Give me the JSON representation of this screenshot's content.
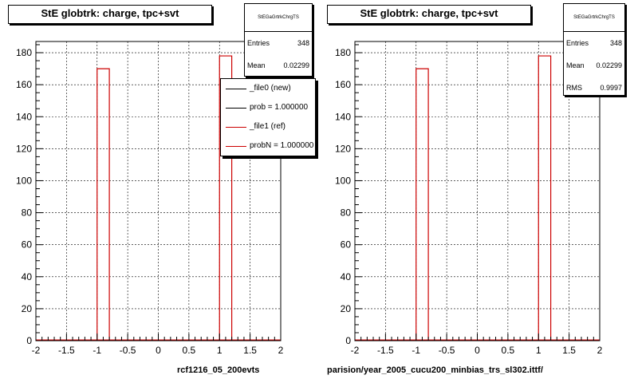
{
  "panels": [
    {
      "title": "StE globtrk: charge, tpc+svt",
      "stats": {
        "name": "StEGaGrtrkChrgTS",
        "rows": [
          {
            "label": "Entries",
            "value": "348"
          },
          {
            "label": "Mean",
            "value": "0.02299"
          }
        ]
      },
      "legend": [
        {
          "label": "_file0 (new)",
          "color": "#000000"
        },
        {
          "label": "prob = 1.000000",
          "color": "#000000"
        },
        {
          "label": "_file1 (ref)",
          "color": "#cc0000"
        },
        {
          "label": "probN = 1.000000",
          "color": "#cc0000"
        }
      ],
      "footer": "rcf1216_05_200evts"
    },
    {
      "title": "StE globtrk: charge, tpc+svt",
      "stats": {
        "name": "StEGaGrtrkChrgTS",
        "rows": [
          {
            "label": "Entries",
            "value": "348"
          },
          {
            "label": "Mean",
            "value": "0.02299"
          },
          {
            "label": "RMS",
            "value": "0.9997"
          }
        ]
      },
      "footer": "parision/year_2005_cucu200_minbias_trs_sl302.ittf/"
    }
  ],
  "chart_data": [
    {
      "type": "bar",
      "title": "StE globtrk: charge, tpc+svt",
      "xlim": [
        -2,
        2
      ],
      "ylim": [
        0,
        187
      ],
      "xticks": [
        "-2",
        "-1.5",
        "-1",
        "-0.5",
        "0",
        "0.5",
        "1",
        "1.5",
        "2"
      ],
      "yticks": [
        "0",
        "20",
        "40",
        "60",
        "80",
        "100",
        "120",
        "140",
        "160",
        "180"
      ],
      "bin_width": 0.2,
      "series": [
        {
          "name": "_file1 (ref)",
          "color": "#cc0000",
          "bins": [
            {
              "x0": -1.0,
              "value": 170
            },
            {
              "x0": 1.0,
              "value": 178
            }
          ]
        }
      ],
      "grid": true,
      "legend": "top-right"
    },
    {
      "type": "bar",
      "title": "StE globtrk: charge, tpc+svt",
      "xlim": [
        -2,
        2
      ],
      "ylim": [
        0,
        187
      ],
      "xticks": [
        "-2",
        "-1.5",
        "-1",
        "-0.5",
        "0",
        "0.5",
        "1",
        "1.5",
        "2"
      ],
      "yticks": [
        "0",
        "20",
        "40",
        "60",
        "80",
        "100",
        "120",
        "140",
        "160",
        "180"
      ],
      "bin_width": 0.2,
      "series": [
        {
          "color": "#cc0000",
          "bins": [
            {
              "x0": -1.0,
              "value": 170
            },
            {
              "x0": 1.0,
              "value": 178
            }
          ]
        }
      ],
      "grid": true
    }
  ]
}
